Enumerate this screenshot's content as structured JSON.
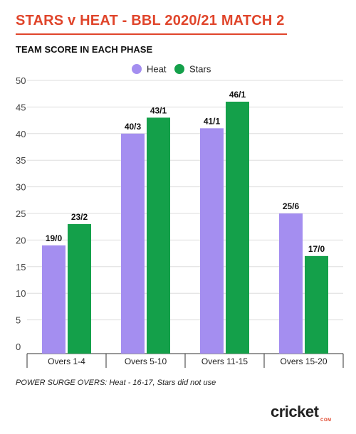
{
  "header": {
    "title": "STARS v HEAT - BBL 2020/21 MATCH 2",
    "subtitle": "TEAM SCORE IN EACH PHASE"
  },
  "footnote": "POWER SURGE OVERS: Heat - 16-17, Stars did not use",
  "logo": {
    "text": "cricket",
    "sub": "COM"
  },
  "colors": {
    "title": "#e0452b",
    "heat": "#a48ef0",
    "stars": "#14a04a",
    "grid": "#dddddd",
    "axis": "#333333"
  },
  "chart_data": {
    "type": "bar",
    "categories": [
      "Overs 1-4",
      "Overs 5-10",
      "Overs 11-15",
      "Overs 15-20"
    ],
    "series": [
      {
        "name": "Heat",
        "values": [
          19,
          40,
          41,
          25
        ],
        "labels": [
          "19/0",
          "40/3",
          "41/1",
          "25/6"
        ],
        "color": "#a48ef0"
      },
      {
        "name": "Stars",
        "values": [
          23,
          43,
          46,
          17
        ],
        "labels": [
          "23/2",
          "43/1",
          "46/1",
          "17/0"
        ],
        "color": "#14a04a"
      }
    ],
    "ylim": [
      0,
      50
    ],
    "yticks": [
      0,
      5,
      10,
      15,
      20,
      25,
      30,
      35,
      40,
      45,
      50
    ],
    "grid": true,
    "legend": "top-center"
  }
}
